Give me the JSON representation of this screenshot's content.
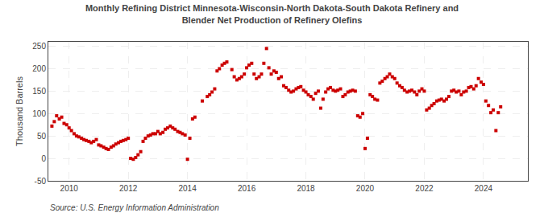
{
  "chart_data": {
    "type": "scatter",
    "title": "Monthly Refining District Minnesota-Wisconsin-North Dakota-South Dakota Refinery and\nBlender Net Production of Refinery Olefins",
    "ylabel": "Thousand Barrels",
    "annotations": [
      "Source: U.S. Energy Information Administration"
    ],
    "color": "#cc0000",
    "marker": "square",
    "grid": true,
    "xlim": [
      2009.3,
      2025.5
    ],
    "xticks": [
      2010,
      2012,
      2014,
      2016,
      2018,
      2020,
      2022,
      2024
    ],
    "ylim": [
      -50,
      260
    ],
    "yticks": [
      -50,
      0,
      50,
      100,
      150,
      200,
      250
    ],
    "x": [
      2009.42,
      2009.5,
      2009.58,
      2009.67,
      2009.75,
      2009.83,
      2009.92,
      2010.0,
      2010.08,
      2010.17,
      2010.25,
      2010.33,
      2010.42,
      2010.5,
      2010.58,
      2010.67,
      2010.75,
      2010.83,
      2010.92,
      2011.0,
      2011.08,
      2011.17,
      2011.25,
      2011.33,
      2011.42,
      2011.5,
      2011.58,
      2011.67,
      2011.75,
      2011.83,
      2011.92,
      2012.0,
      2012.08,
      2012.17,
      2012.25,
      2012.33,
      2012.42,
      2012.5,
      2012.58,
      2012.67,
      2012.75,
      2012.83,
      2012.92,
      2013.0,
      2013.08,
      2013.17,
      2013.25,
      2013.33,
      2013.42,
      2013.5,
      2013.58,
      2013.67,
      2013.75,
      2013.83,
      2013.92,
      2014.0,
      2014.08,
      2014.17,
      2014.25,
      2014.5,
      2014.67,
      2014.75,
      2014.83,
      2014.92,
      2015.0,
      2015.08,
      2015.17,
      2015.25,
      2015.33,
      2015.5,
      2015.58,
      2015.67,
      2015.75,
      2015.83,
      2015.92,
      2016.0,
      2016.08,
      2016.17,
      2016.25,
      2016.33,
      2016.42,
      2016.5,
      2016.58,
      2016.67,
      2016.75,
      2016.83,
      2016.92,
      2017.0,
      2017.08,
      2017.17,
      2017.25,
      2017.33,
      2017.42,
      2017.5,
      2017.58,
      2017.67,
      2017.75,
      2017.83,
      2017.92,
      2018.0,
      2018.08,
      2018.17,
      2018.25,
      2018.33,
      2018.42,
      2018.5,
      2018.58,
      2018.67,
      2018.75,
      2018.83,
      2018.92,
      2019.0,
      2019.08,
      2019.17,
      2019.25,
      2019.33,
      2019.42,
      2019.5,
      2019.58,
      2019.67,
      2019.75,
      2019.83,
      2019.92,
      2020.0,
      2020.08,
      2020.17,
      2020.25,
      2020.33,
      2020.42,
      2020.5,
      2020.58,
      2020.67,
      2020.75,
      2020.83,
      2020.92,
      2021.0,
      2021.08,
      2021.17,
      2021.25,
      2021.33,
      2021.42,
      2021.5,
      2021.58,
      2021.67,
      2021.75,
      2021.83,
      2021.92,
      2022.0,
      2022.08,
      2022.17,
      2022.25,
      2022.33,
      2022.42,
      2022.5,
      2022.58,
      2022.67,
      2022.75,
      2022.83,
      2022.92,
      2023.0,
      2023.08,
      2023.17,
      2023.25,
      2023.33,
      2023.42,
      2023.5,
      2023.58,
      2023.67,
      2023.75,
      2023.83,
      2023.92,
      2024.0,
      2024.08,
      2024.17,
      2024.25,
      2024.33,
      2024.42,
      2024.5,
      2024.58
    ],
    "values": [
      72,
      82,
      95,
      88,
      92,
      78,
      75,
      68,
      62,
      55,
      50,
      48,
      45,
      42,
      40,
      38,
      35,
      38,
      42,
      30,
      28,
      25,
      22,
      20,
      25,
      28,
      32,
      35,
      38,
      40,
      42,
      45,
      0,
      -2,
      2,
      8,
      15,
      38,
      45,
      50,
      52,
      55,
      55,
      60,
      55,
      58,
      65,
      68,
      72,
      68,
      65,
      60,
      58,
      55,
      52,
      -2,
      45,
      88,
      92,
      128,
      138,
      142,
      148,
      155,
      195,
      200,
      208,
      212,
      215,
      198,
      182,
      175,
      178,
      182,
      188,
      202,
      208,
      212,
      188,
      178,
      182,
      188,
      212,
      245,
      202,
      188,
      195,
      192,
      178,
      182,
      162,
      158,
      152,
      148,
      150,
      155,
      158,
      160,
      152,
      148,
      142,
      138,
      132,
      145,
      150,
      112,
      132,
      148,
      155,
      158,
      152,
      150,
      152,
      155,
      138,
      142,
      148,
      150,
      152,
      150,
      95,
      92,
      100,
      22,
      45,
      142,
      138,
      132,
      130,
      168,
      172,
      178,
      182,
      188,
      182,
      178,
      168,
      162,
      158,
      152,
      148,
      150,
      152,
      148,
      142,
      150,
      155,
      150,
      108,
      112,
      118,
      122,
      128,
      130,
      132,
      128,
      132,
      138,
      150,
      152,
      148,
      150,
      142,
      148,
      150,
      158,
      160,
      155,
      162,
      178,
      170,
      165,
      128,
      118,
      102,
      108,
      62,
      102,
      115
    ]
  }
}
